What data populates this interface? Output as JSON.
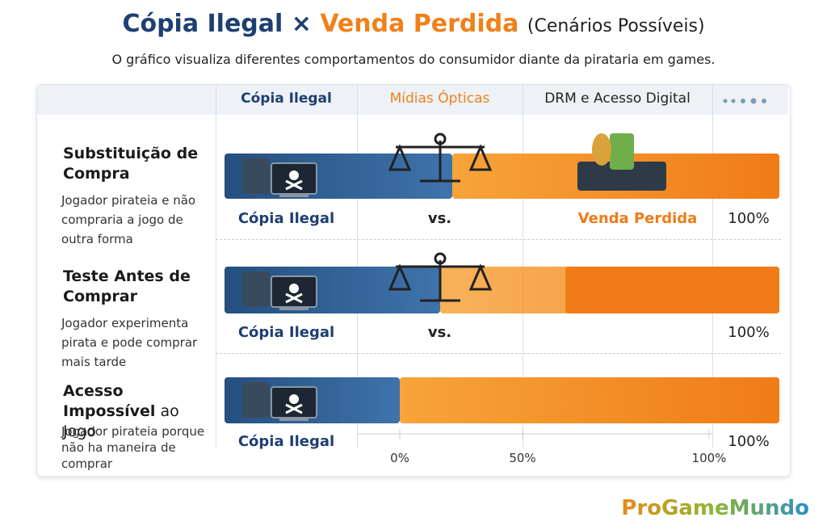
{
  "header": {
    "title_a": "Cópia Ilegal",
    "title_sep": "×",
    "title_b": "Venda Perdida",
    "title_c": "(Cenários Possíveis)",
    "subtitle": "O gráfico visualiza diferentes comportamentos do consumidor diante da pirataria em games."
  },
  "columns": [
    "Cópia Ilegal",
    "Mídias Ópticas",
    "DRM e Acesso Digital"
  ],
  "rows": [
    {
      "title": "Substituição de Compra",
      "title_rest": "",
      "description": "Jogador pirateia e não compraria a jogo de outra forma",
      "left": "Cópia Ilegal",
      "middle": "vs.",
      "right": "Venda Perdida",
      "percent": "100%"
    },
    {
      "title": "Teste Antes de Comprar",
      "title_rest": "",
      "description": "Jogador experimenta pirata e pode comprar mais tarde",
      "left": "Cópia Ilegal",
      "middle": "vs.",
      "right": "",
      "percent": "100%"
    },
    {
      "title": "Acesso Impossível",
      "title_rest": "ao Jogo",
      "description": "Jogador pirateia porque não ha maneira de comprar",
      "left": "Cópia Ilegal",
      "middle": "",
      "right": "",
      "percent": "100%"
    }
  ],
  "axis": [
    "0%",
    "50%",
    "100%"
  ],
  "brand": "ProGameMundo"
}
